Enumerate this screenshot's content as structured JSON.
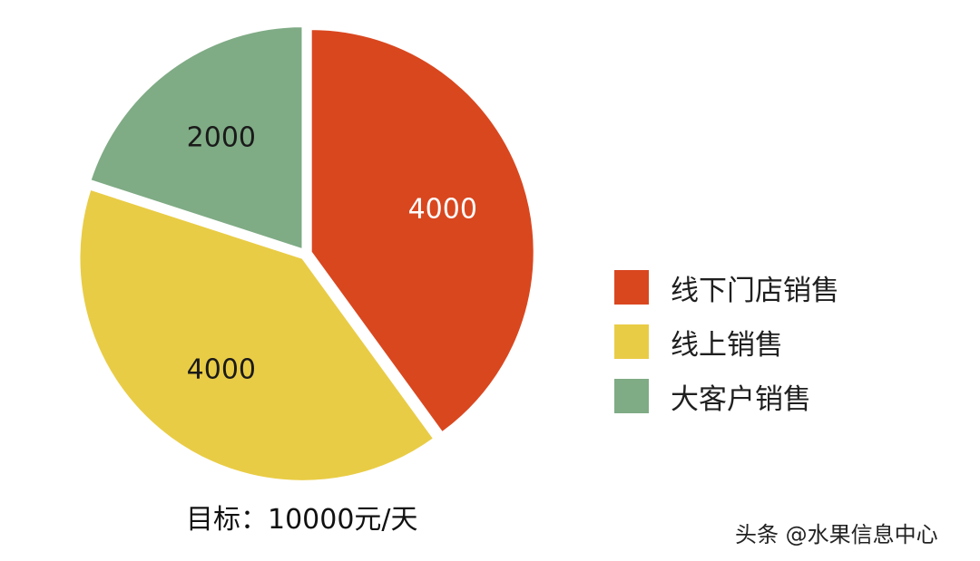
{
  "chart_data": {
    "type": "pie",
    "categories": [
      "线下门店销售",
      "线上销售",
      "大客户销售"
    ],
    "values": [
      4000,
      4000,
      2000
    ],
    "data_labels": [
      "4000",
      "4000",
      "2000"
    ],
    "colors": [
      "#d9471f",
      "#e9cc45",
      "#7fab85"
    ],
    "label_colors": [
      "#ffffff",
      "#1a1a1a",
      "#1a1a1a"
    ],
    "start_angle_deg": 0,
    "direction": "clockwise",
    "exploded": true,
    "legend_position": "right"
  },
  "caption": "目标：10000元/天",
  "watermark": "头条 @水果信息中心"
}
